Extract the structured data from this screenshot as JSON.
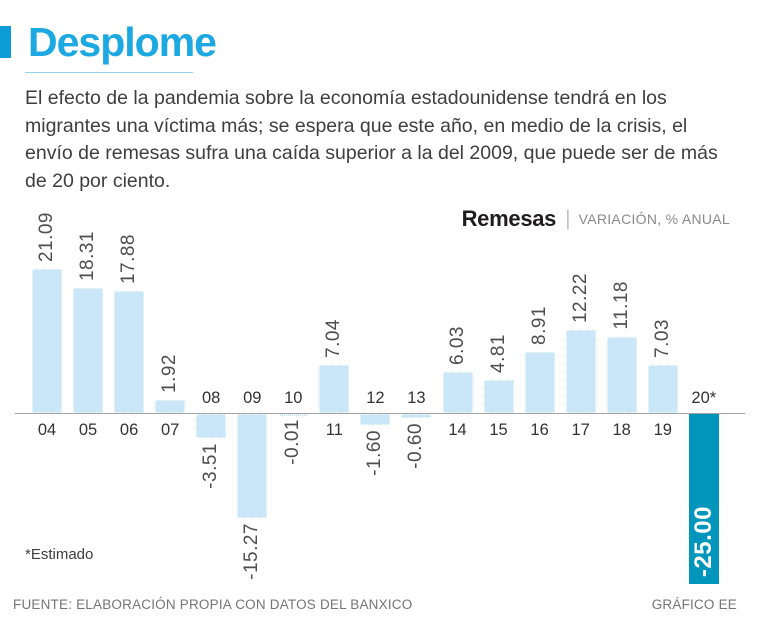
{
  "header": {
    "title": "Desplome",
    "intro": "El efecto de la pandemia sobre la economía estadounidense tendrá en los migrantes una víctima más; se espera que este año, en medio de la crisis, el envío de remesas sufra una caída superior a la del 2009, que puede ser de más de 20 por ciento."
  },
  "theme": {
    "accent_text": "#1CA9E2",
    "accent_block": "#0D9DD6",
    "underline": "#8FD4EF"
  },
  "chart_data": {
    "type": "bar",
    "title": "Remesas",
    "separator": "|",
    "subtitle": "VARIACIÓN, % ANUAL",
    "xlabel": "",
    "ylabel": "",
    "categories": [
      "04",
      "05",
      "06",
      "07",
      "08",
      "09",
      "10",
      "11",
      "12",
      "13",
      "14",
      "15",
      "16",
      "17",
      "18",
      "19",
      "20*"
    ],
    "values": [
      21.09,
      18.31,
      17.88,
      1.92,
      -3.51,
      -15.27,
      -0.01,
      7.04,
      -1.6,
      -0.6,
      6.03,
      4.81,
      8.91,
      12.22,
      11.18,
      7.03,
      -25.0
    ],
    "value_labels": [
      "21.09",
      "18.31",
      "17.88",
      "1.92",
      "-3.51",
      "-15.27",
      "-0.01",
      "7.04",
      "-1.60",
      "-0.60",
      "6.03",
      "4.81",
      "8.91",
      "12.22",
      "11.18",
      "7.03",
      "-25.00"
    ],
    "highlight_index": 16,
    "highlight_note": "estimated year, value label drawn inside bar in white",
    "baseline": 0,
    "ylim": [
      -25.0,
      21.09
    ],
    "grid": false,
    "legend_position": "none",
    "value_label_rotation": "vertical-bottom-to-top",
    "colors": {
      "bar": "#C9E7F8",
      "bar_highlight": "#0096BC",
      "axis": "#A3A3A3",
      "value_label": "#4E4E4E",
      "inside_label": "#FFFFFF",
      "year_label": "#333333"
    },
    "footnote": "*Estimado"
  },
  "footer": {
    "source": "FUENTE: ELABORACIÓN PROPIA CON DATOS DEL BANXICO",
    "credit": "GRÁFICO EE"
  }
}
